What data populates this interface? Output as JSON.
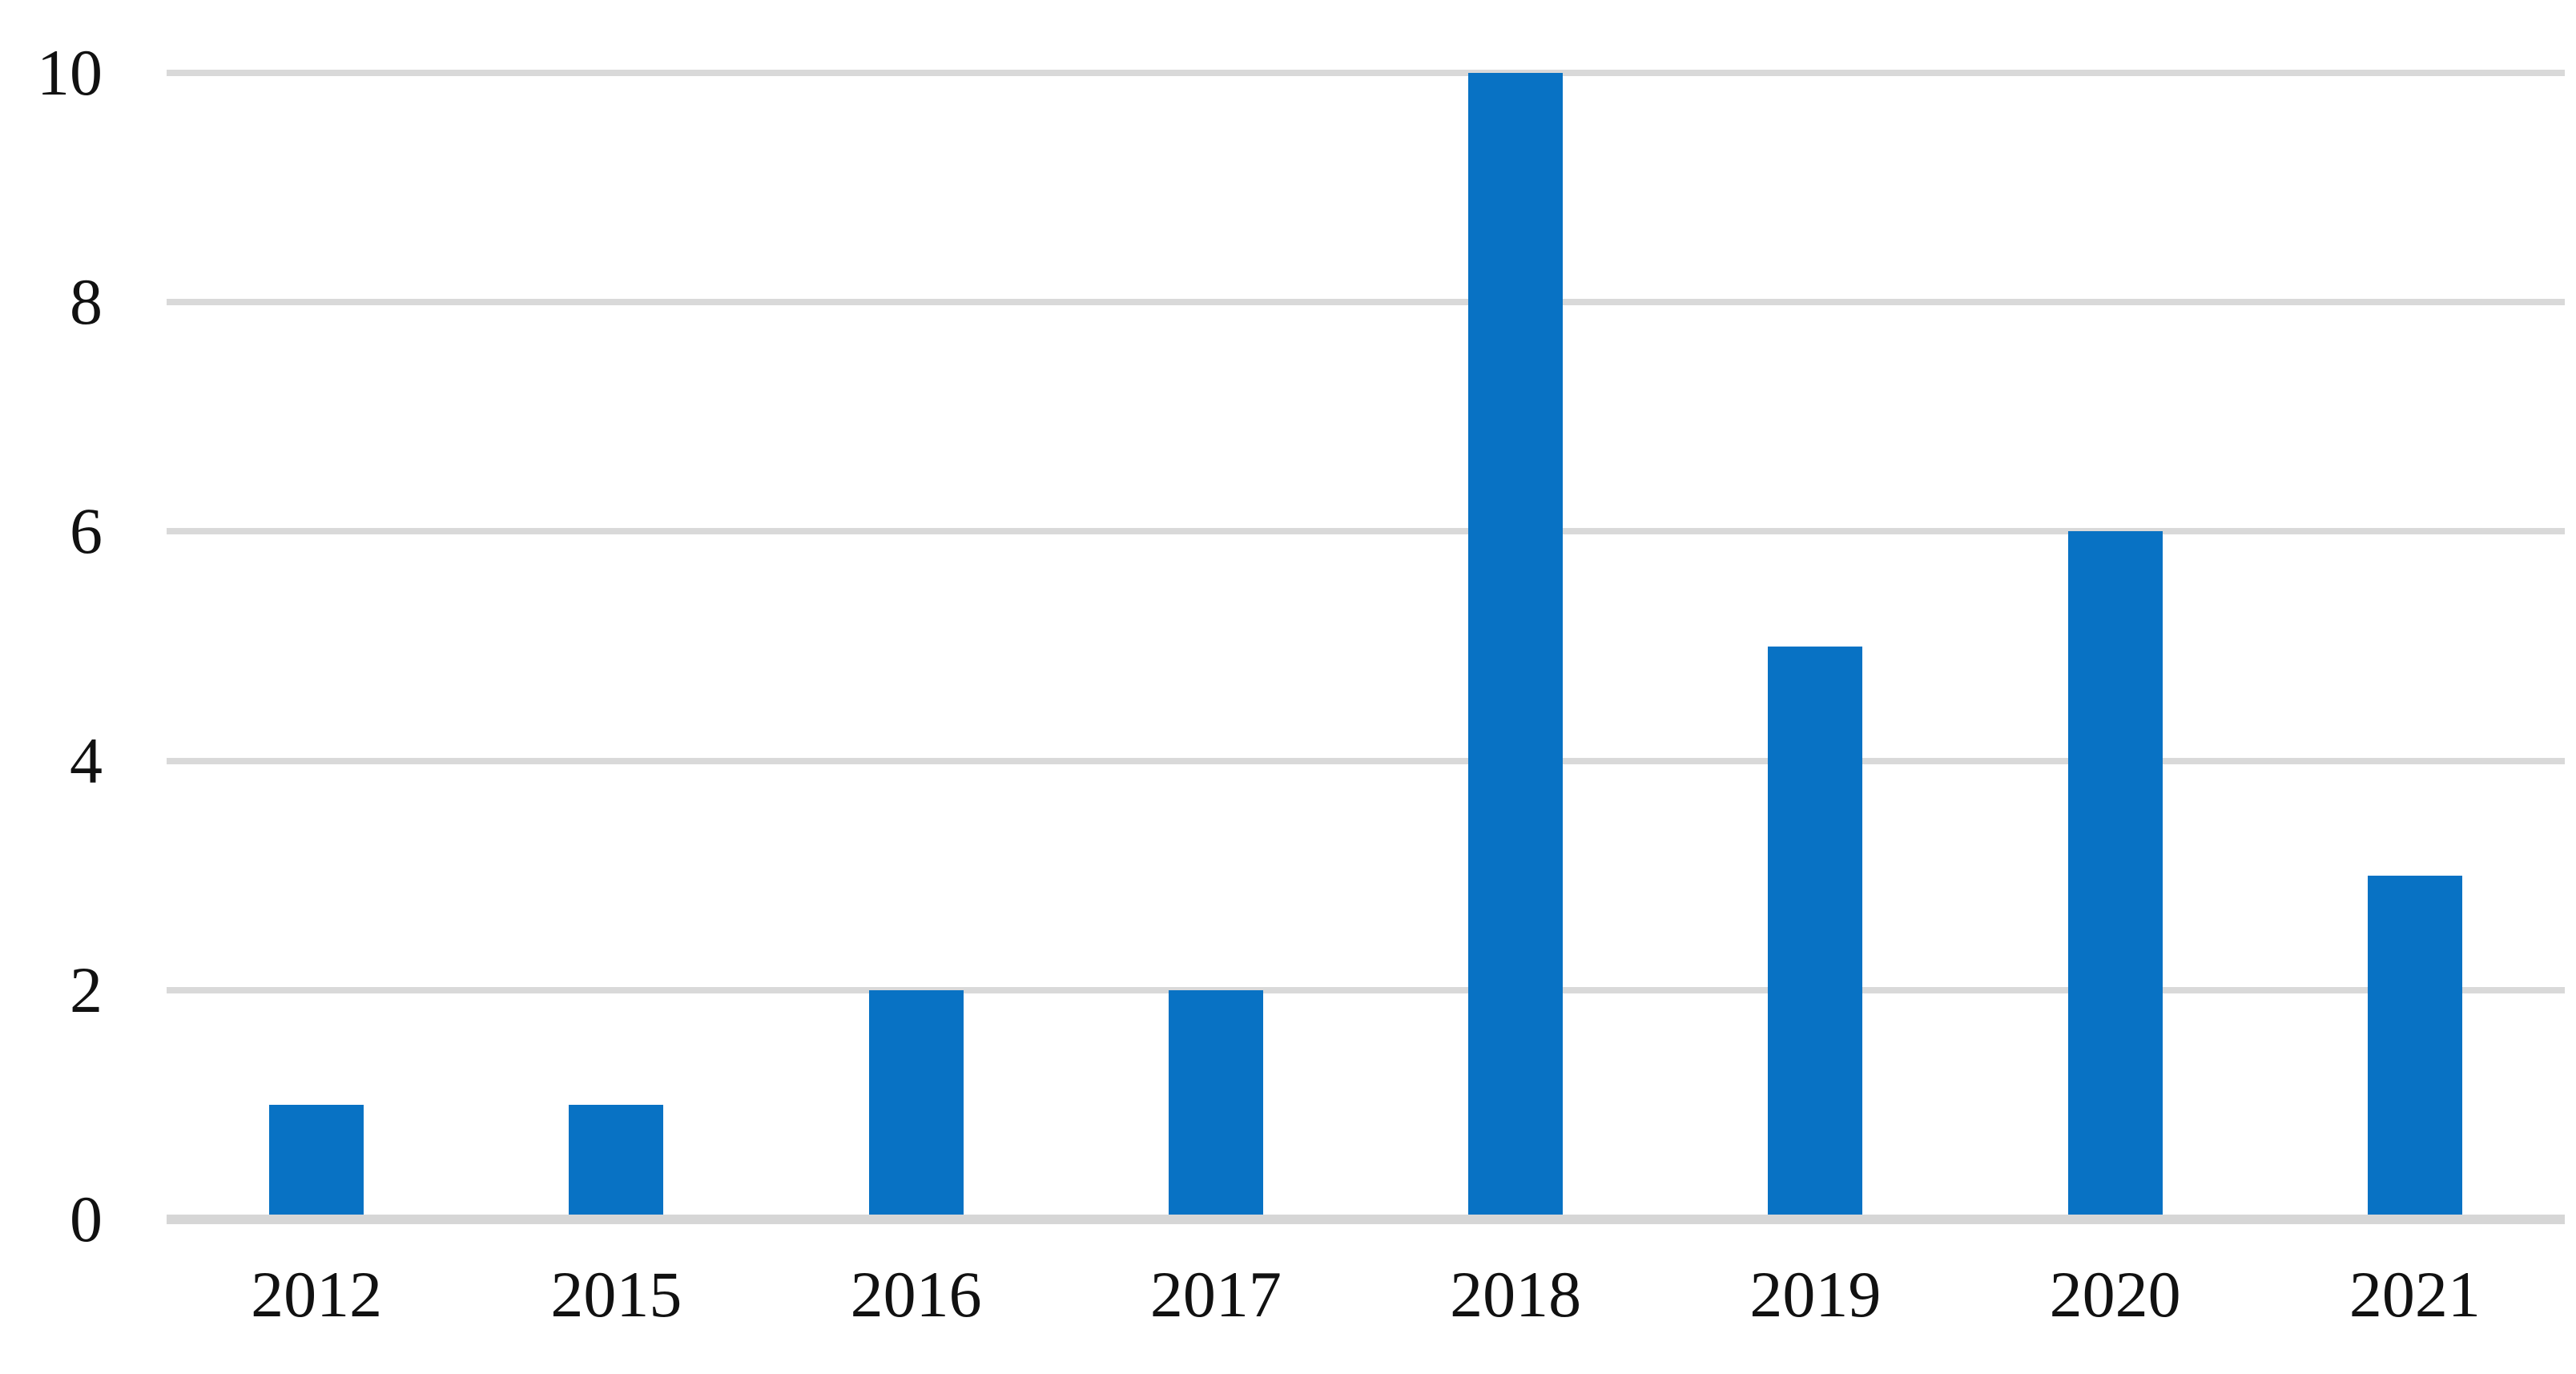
{
  "chart_data": {
    "type": "bar",
    "categories": [
      "2012",
      "2015",
      "2016",
      "2017",
      "2018",
      "2019",
      "2020",
      "2021"
    ],
    "values": [
      1,
      1,
      2,
      2,
      10,
      5,
      6,
      3
    ],
    "title": "",
    "xlabel": "",
    "ylabel": "",
    "ylim": [
      0,
      10
    ],
    "yticks": [
      0,
      2,
      4,
      6,
      8,
      10
    ],
    "grid": "horizontal",
    "legend": "none",
    "bar_color": "#0872C4",
    "gridline_color": "#D9D9D9",
    "baseline_color": "#D6D6D6",
    "tick_label_color": "#111111"
  }
}
